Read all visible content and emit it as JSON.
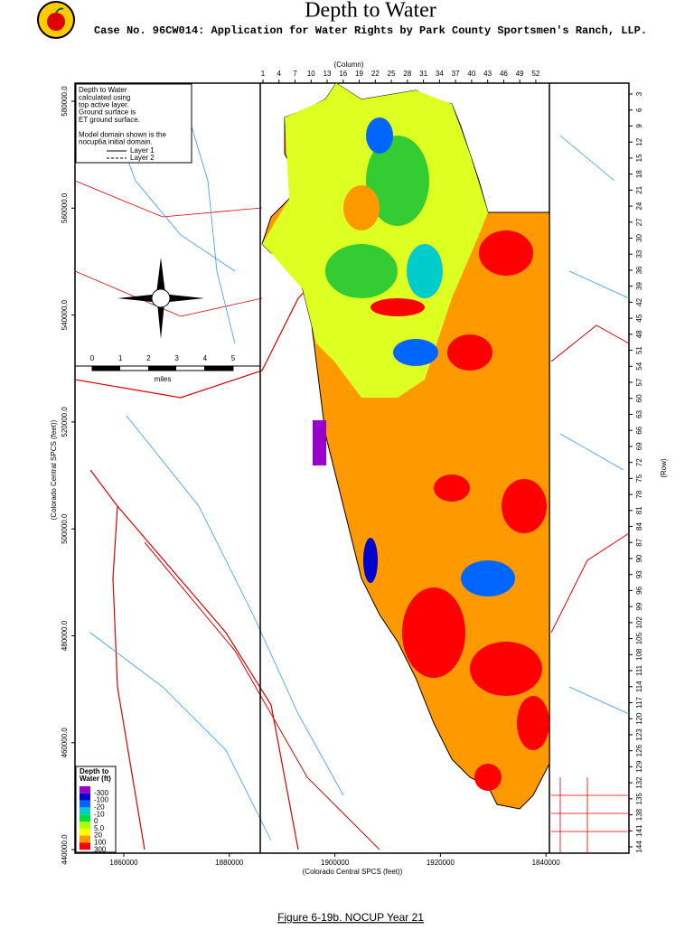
{
  "header": {
    "title": "Depth to Water",
    "subtitle": "Case No. 96CW014: Application for Water Rights by Park County Sportsmen's Ranch, LLP."
  },
  "map": {
    "column_label": "(Column)",
    "columns": [
      "1",
      "4",
      "7",
      "10",
      "13",
      "16",
      "19",
      "22",
      "25",
      "28",
      "31",
      "34",
      "37",
      "40",
      "43",
      "46",
      "49",
      "52"
    ],
    "row_label": "(Row)",
    "rows": [
      "3",
      "6",
      "9",
      "12",
      "15",
      "18",
      "21",
      "24",
      "27",
      "30",
      "33",
      "36",
      "39",
      "42",
      "45",
      "48",
      "51",
      "54",
      "57",
      "60",
      "63",
      "66",
      "69",
      "72",
      "75",
      "78",
      "81",
      "84",
      "87",
      "90",
      "93",
      "96",
      "99",
      "102",
      "105",
      "108",
      "111",
      "114",
      "117",
      "120",
      "123",
      "126",
      "129",
      "132",
      "135",
      "138",
      "141",
      "144"
    ],
    "y_axis_label": "(Colorado Central SPCS (feet))",
    "y_ticks": [
      "580000.0",
      "560000.0",
      "540000.0",
      "520000.0",
      "500000.0",
      "480000.0",
      "460000.0",
      "440000.0"
    ],
    "x_axis_label": "(Colorado Central SPCS (feet))",
    "x_ticks": [
      "1860000",
      "1880000",
      "1900000",
      "1920000",
      "1840000"
    ],
    "info_box": {
      "lines": [
        "Depth to Water",
        "calculated using",
        "top active layer.",
        "Ground surface is",
        "ET ground surface.",
        "",
        "Model domain shown is the",
        "nocup6a initial domain."
      ],
      "layer1": "Layer 1",
      "layer2": "Layer 2"
    },
    "scale_bar": {
      "ticks": [
        "0",
        "1",
        "2",
        "3",
        "4",
        "5"
      ],
      "unit": "miles"
    },
    "legend": {
      "title_lines": [
        "Depth to",
        "Water (ft)"
      ],
      "items": [
        {
          "label": "-300",
          "color": "#9900cc"
        },
        {
          "label": "-100",
          "color": "#0000cc"
        },
        {
          "label": "-20",
          "color": "#0066ff"
        },
        {
          "label": "-10",
          "color": "#00cccc"
        },
        {
          "label": "0",
          "color": "#00dd44"
        },
        {
          "label": "5.0",
          "color": "#aaff00"
        },
        {
          "label": "20",
          "color": "#ffff00"
        },
        {
          "label": "100",
          "color": "#ff9900"
        },
        {
          "label": "300",
          "color": "#ff0000"
        }
      ]
    }
  },
  "caption": "Figure 6-19b.  NOCUP Year 21"
}
